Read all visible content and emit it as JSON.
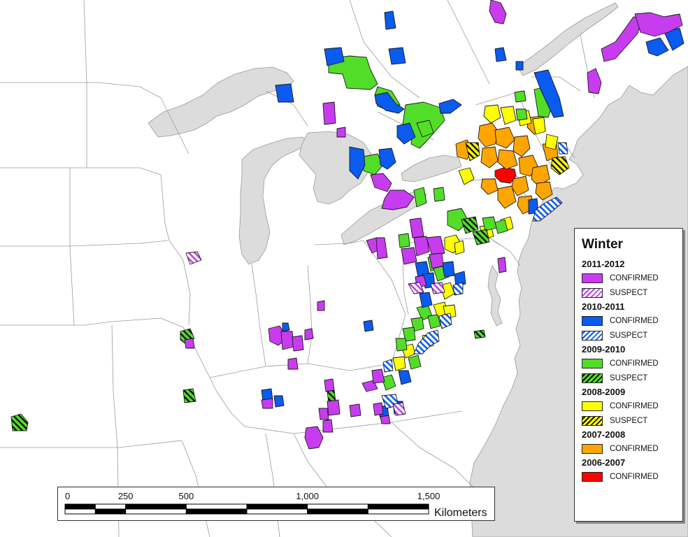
{
  "legend": {
    "title": "Winter",
    "groups": [
      {
        "year": "2011-2012",
        "color": "#c83cf0",
        "items": [
          {
            "label": "CONFIRMED",
            "pattern": "solid"
          },
          {
            "label": "SUSPECT",
            "pattern": "hatch"
          }
        ]
      },
      {
        "year": "2010-2011",
        "color": "#0a5bf0",
        "items": [
          {
            "label": "CONFIRMED",
            "pattern": "solid"
          },
          {
            "label": "SUSPECT",
            "pattern": "hatch"
          }
        ]
      },
      {
        "year": "2009-2010",
        "color": "#52de28",
        "items": [
          {
            "label": "CONFIRMED",
            "pattern": "solid"
          },
          {
            "label": "SUSPECT",
            "pattern": "hatch"
          }
        ]
      },
      {
        "year": "2008-2009",
        "color": "#ffff00",
        "items": [
          {
            "label": "CONFIRMED",
            "pattern": "solid"
          },
          {
            "label": "SUSPECT",
            "pattern": "hatch"
          }
        ]
      },
      {
        "year": "2007-2008",
        "color": "#ffa500",
        "items": [
          {
            "label": "CONFIRMED",
            "pattern": "solid"
          }
        ]
      },
      {
        "year": "2006-2007",
        "color": "#ff0000",
        "items": [
          {
            "label": "CONFIRMED",
            "pattern": "solid"
          }
        ]
      }
    ]
  },
  "scale": {
    "ticks": [
      "0",
      "250",
      "500",
      "1,000",
      "1,500"
    ],
    "unit": "Kilometers"
  },
  "colors": {
    "land": "#ffffff",
    "water": "#dcdcdc",
    "border": "#9a9a9a"
  }
}
